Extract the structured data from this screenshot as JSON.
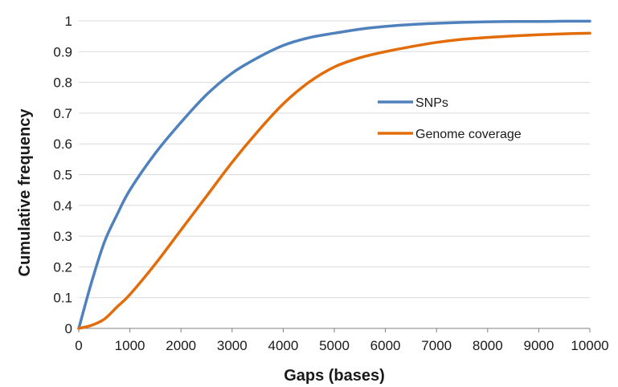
{
  "chart_data": {
    "type": "line",
    "xlabel": "Gaps (bases)",
    "ylabel": "Cumulative frequency",
    "xlim": [
      0,
      10000
    ],
    "ylim": [
      0,
      1
    ],
    "x_ticks": [
      "0",
      "1000",
      "2000",
      "3000",
      "4000",
      "5000",
      "6000",
      "7000",
      "8000",
      "9000",
      "10000"
    ],
    "y_ticks": [
      "0",
      "0.1",
      "0.2",
      "0.3",
      "0.4",
      "0.5",
      "0.6",
      "0.7",
      "0.8",
      "0.9",
      "1"
    ],
    "grid": "horizontal",
    "legend_position": "center-right",
    "x": [
      0,
      250,
      500,
      750,
      1000,
      1500,
      2000,
      2500,
      3000,
      3500,
      4000,
      4500,
      5000,
      5500,
      6000,
      6500,
      7000,
      7500,
      8000,
      8500,
      9000,
      9500,
      10000
    ],
    "series": [
      {
        "name": "SNPs",
        "color": "#4F81BD",
        "values": [
          0,
          0.15,
          0.28,
          0.37,
          0.45,
          0.57,
          0.67,
          0.76,
          0.83,
          0.88,
          0.92,
          0.945,
          0.96,
          0.973,
          0.982,
          0.988,
          0.992,
          0.995,
          0.997,
          0.998,
          0.998,
          0.999,
          0.999
        ]
      },
      {
        "name": "Genome coverage",
        "color": "#E36C0A",
        "values": [
          0,
          0.01,
          0.03,
          0.07,
          0.11,
          0.21,
          0.32,
          0.43,
          0.54,
          0.64,
          0.73,
          0.8,
          0.85,
          0.88,
          0.9,
          0.916,
          0.93,
          0.94,
          0.946,
          0.951,
          0.955,
          0.958,
          0.96
        ]
      }
    ]
  }
}
